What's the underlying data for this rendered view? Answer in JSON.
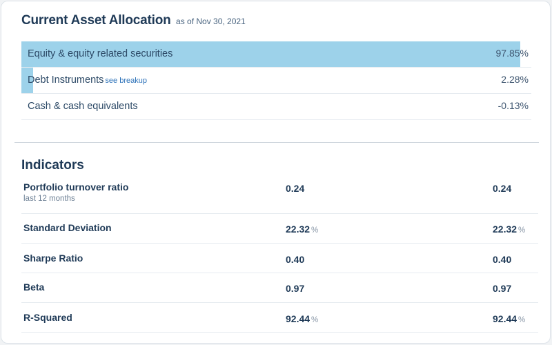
{
  "allocation": {
    "title": "Current Asset Allocation",
    "as_of": "as of Nov 30, 2021",
    "bar_color": "#9dd2ea",
    "rows": [
      {
        "label": "Equity & equity related securities",
        "link": "",
        "value": "97.85%",
        "fraction": 0.9785
      },
      {
        "label": "Debt Instruments",
        "link": "see breakup",
        "value": "2.28%",
        "fraction": 0.0228
      },
      {
        "label": "Cash & cash equivalents",
        "link": "",
        "value": "-0.13%",
        "fraction": 0
      }
    ]
  },
  "indicators": {
    "title": "Indicators",
    "rows": [
      {
        "name": "Portfolio turnover ratio",
        "note": "last 12 months",
        "v1": "0.24",
        "v1_unit": "",
        "v2": "0.24",
        "v2_unit": ""
      },
      {
        "name": "Standard Deviation",
        "note": "",
        "v1": "22.32",
        "v1_unit": "%",
        "v2": "22.32",
        "v2_unit": "%"
      },
      {
        "name": "Sharpe Ratio",
        "note": "",
        "v1": "0.40",
        "v1_unit": "",
        "v2": "0.40",
        "v2_unit": ""
      },
      {
        "name": "Beta",
        "note": "",
        "v1": "0.97",
        "v1_unit": "",
        "v2": "0.97",
        "v2_unit": ""
      },
      {
        "name": "R-Squared",
        "note": "",
        "v1": "92.44",
        "v1_unit": "%",
        "v2": "92.44",
        "v2_unit": "%"
      }
    ]
  }
}
